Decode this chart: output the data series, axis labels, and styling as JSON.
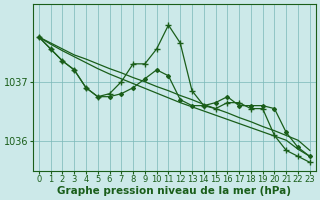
{
  "background_color": "#cce9e9",
  "plot_bg_color": "#cce9e9",
  "line_color": "#1a5e1a",
  "grid_color": "#7ab8b8",
  "xlabel": "Graphe pression niveau de la mer (hPa)",
  "xlabel_fontsize": 7.5,
  "ylabel_fontsize": 7,
  "tick_fontsize": 6,
  "ylim": [
    1035.5,
    1038.3
  ],
  "xlim": [
    -0.5,
    23.5
  ],
  "yticks": [
    1036,
    1037
  ],
  "xticks": [
    0,
    1,
    2,
    3,
    4,
    5,
    6,
    7,
    8,
    9,
    10,
    11,
    12,
    13,
    14,
    15,
    16,
    17,
    18,
    19,
    20,
    21,
    22,
    23
  ],
  "series": [
    {
      "x": [
        0,
        1,
        2,
        3,
        4,
        5,
        6,
        7,
        8,
        9,
        10,
        11,
        12,
        13,
        14,
        15,
        16,
        17,
        18,
        19,
        20,
        21,
        22,
        23
      ],
      "y": [
        1037.75,
        1037.65,
        1037.55,
        1037.45,
        1037.38,
        1037.3,
        1037.22,
        1037.15,
        1037.07,
        1037.0,
        1036.92,
        1036.85,
        1036.77,
        1036.7,
        1036.62,
        1036.55,
        1036.48,
        1036.4,
        1036.33,
        1036.25,
        1036.18,
        1036.1,
        1036.02,
        1035.85
      ],
      "marker": null,
      "linewidth": 0.9
    },
    {
      "x": [
        0,
        1,
        2,
        3,
        4,
        5,
        6,
        7,
        8,
        9,
        10,
        11,
        12,
        13,
        14,
        15,
        16,
        17,
        18,
        19,
        20,
        21,
        22,
        23
      ],
      "y": [
        1037.75,
        1037.63,
        1037.52,
        1037.42,
        1037.32,
        1037.22,
        1037.13,
        1037.05,
        1036.97,
        1036.89,
        1036.81,
        1036.73,
        1036.65,
        1036.58,
        1036.51,
        1036.44,
        1036.37,
        1036.3,
        1036.23,
        1036.16,
        1036.09,
        1036.02,
        1035.87,
        1035.75
      ],
      "marker": null,
      "linewidth": 0.9
    },
    {
      "x": [
        0,
        1,
        2,
        3,
        4,
        5,
        6,
        7,
        8,
        9,
        10,
        11,
        12,
        13,
        14,
        15,
        16,
        17,
        18,
        19,
        20,
        21,
        22,
        23
      ],
      "y": [
        1037.75,
        1037.55,
        1037.35,
        1037.2,
        1036.9,
        1036.75,
        1036.75,
        1036.8,
        1036.9,
        1037.05,
        1037.2,
        1037.1,
        1036.7,
        1036.6,
        1036.6,
        1036.65,
        1036.75,
        1036.6,
        1036.6,
        1036.6,
        1036.55,
        1036.15,
        1035.9,
        1035.75
      ],
      "marker": "D",
      "markersize": 2.0,
      "linewidth": 0.9
    },
    {
      "x": [
        0,
        1,
        2,
        3,
        4,
        5,
        6,
        7,
        8,
        9,
        10,
        11,
        12,
        13,
        14,
        15,
        16,
        17,
        18,
        19,
        20,
        21,
        22,
        23
      ],
      "y": [
        1037.75,
        1037.55,
        1037.35,
        1037.2,
        1036.9,
        1036.75,
        1036.8,
        1037.0,
        1037.3,
        1037.3,
        1037.55,
        1037.95,
        1037.65,
        1036.85,
        1036.6,
        1036.55,
        1036.65,
        1036.65,
        1036.55,
        1036.55,
        1036.1,
        1035.85,
        1035.75,
        1035.65
      ],
      "marker": "+",
      "markersize": 4.5,
      "markeredgewidth": 1.0,
      "linewidth": 0.9
    }
  ]
}
